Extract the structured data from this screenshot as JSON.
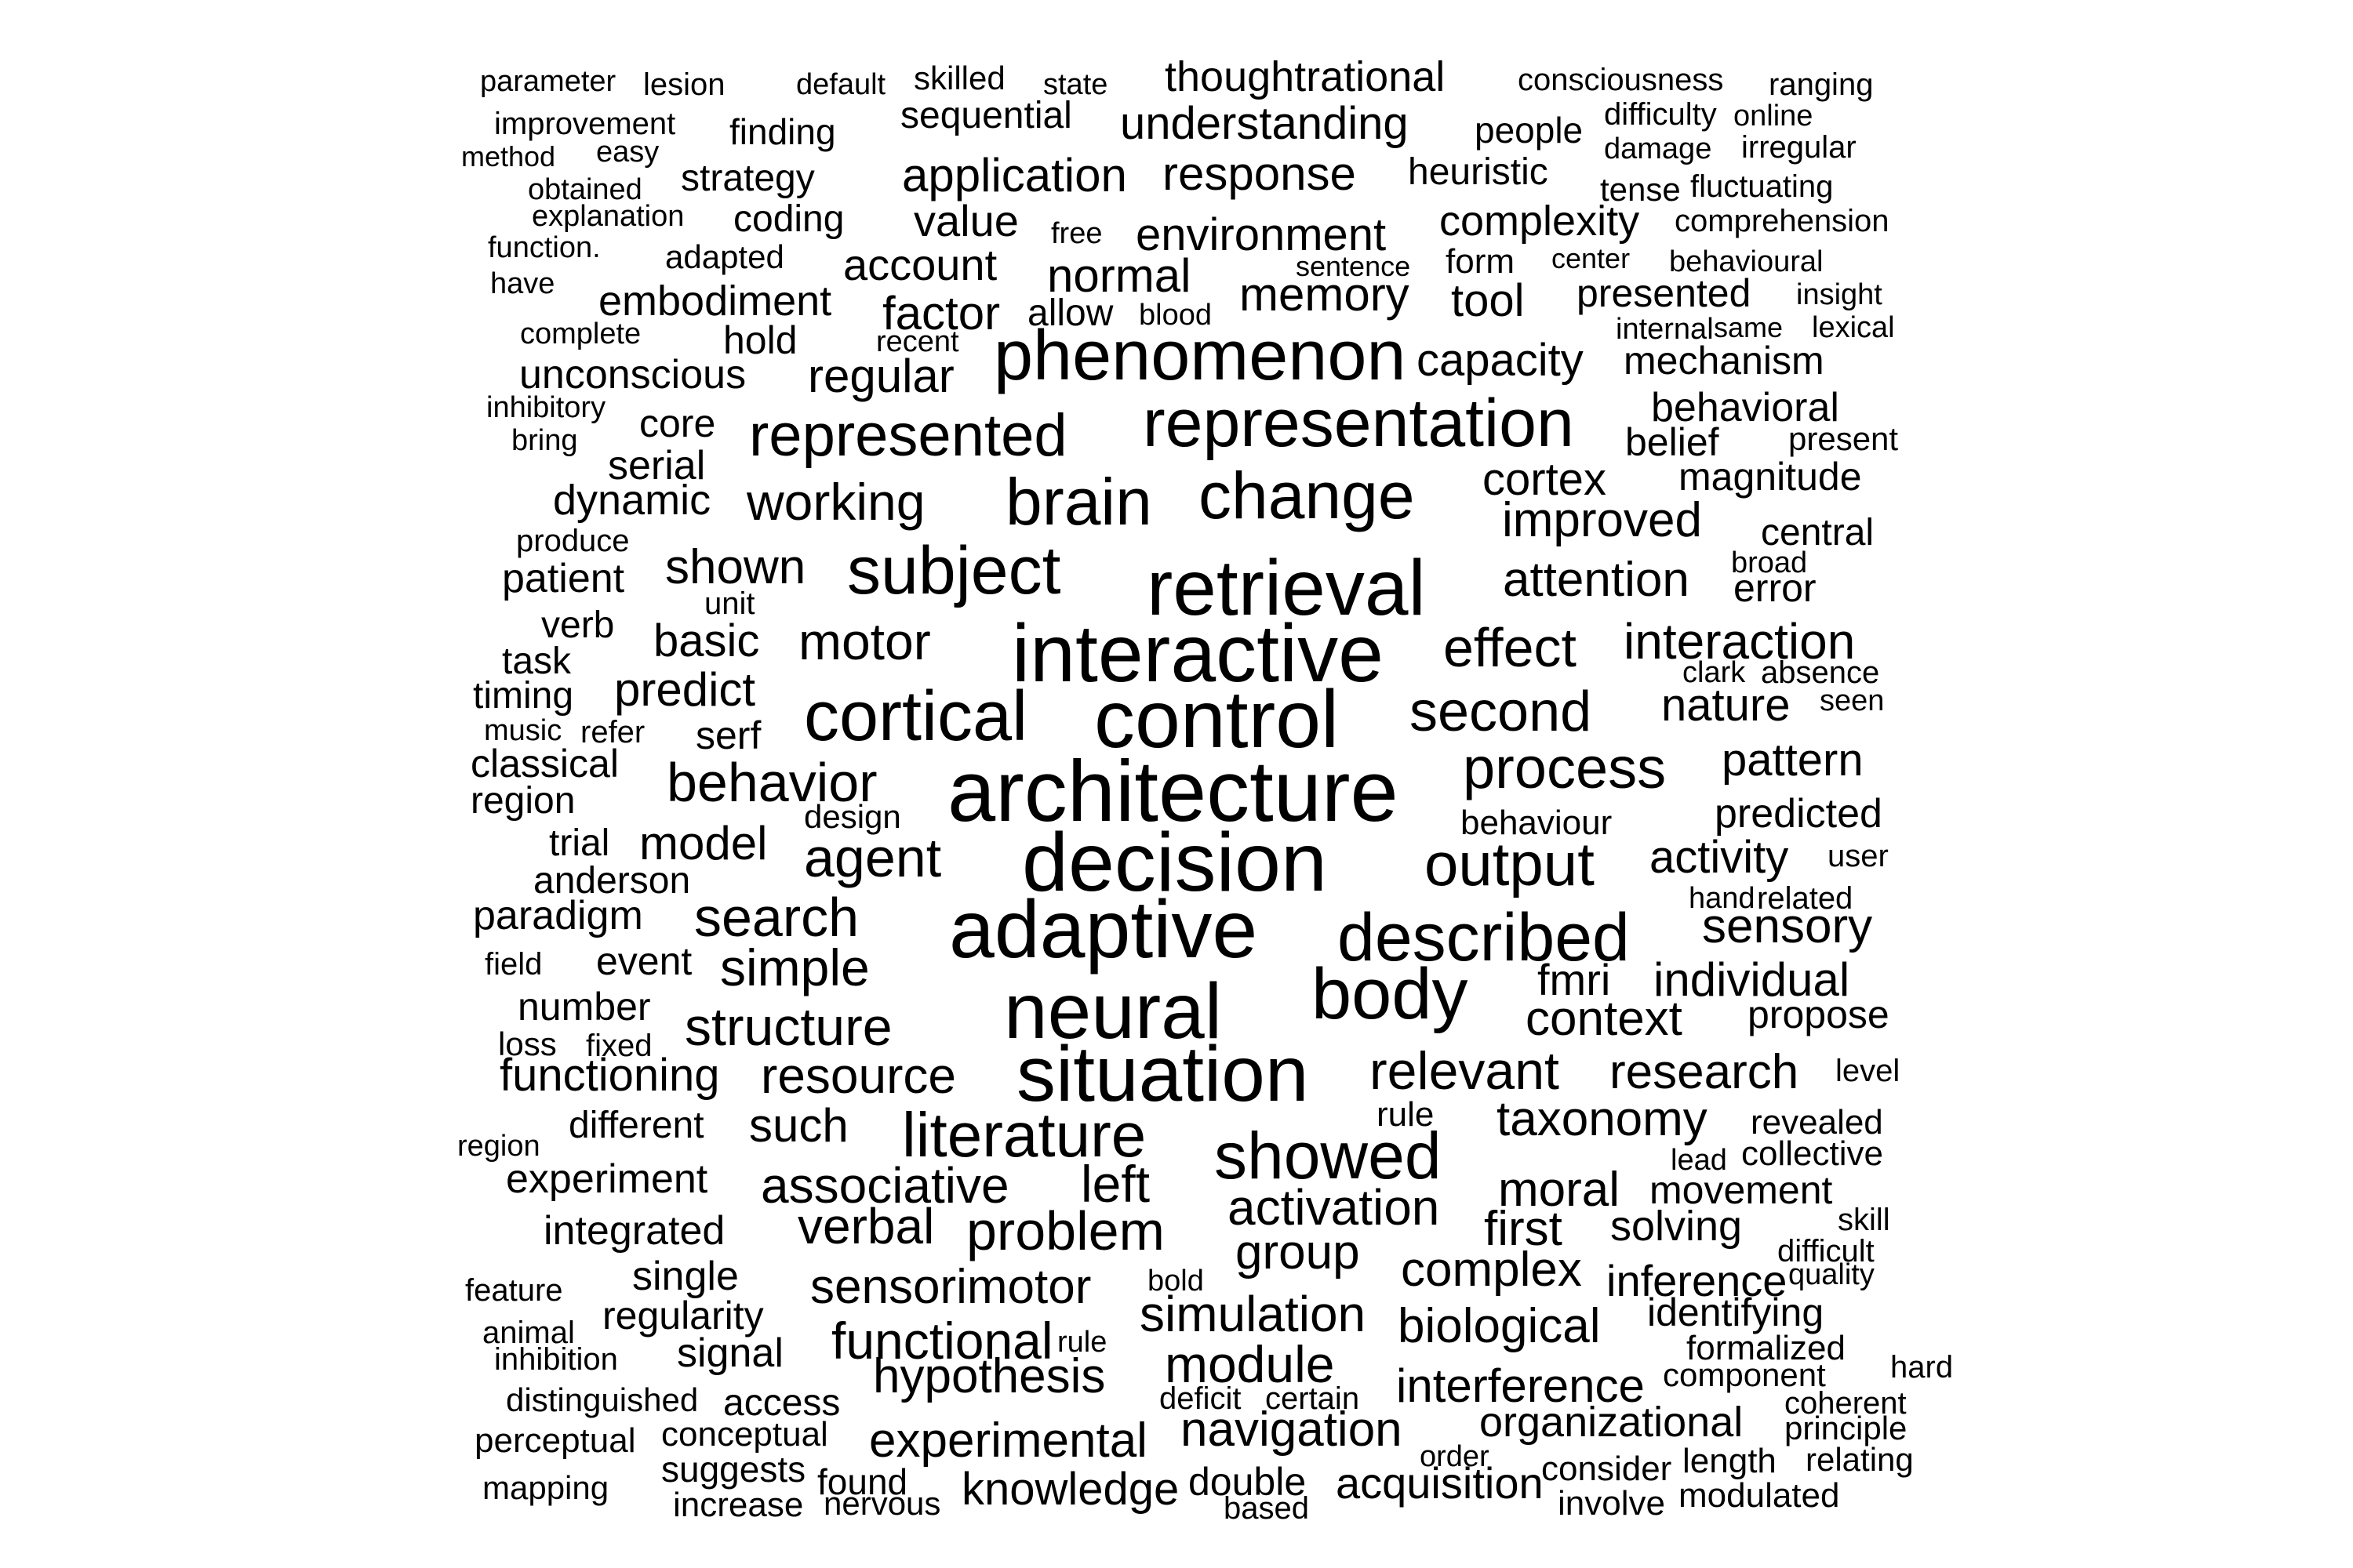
{
  "text_color": "#000000",
  "background_color": "#ffffff",
  "words": [
    "parameter",
    "lesion",
    "default",
    "skilled",
    "state",
    "thoughtrational",
    "consciousness",
    "ranging",
    "improvement",
    "finding",
    "sequential",
    "understanding",
    "people",
    "difficulty",
    "online",
    "method",
    "easy",
    "damage",
    "irregular",
    "strategy",
    "application",
    "response",
    "heuristic",
    "obtained",
    "tense",
    "fluctuating",
    "explanation",
    "coding",
    "value",
    "complexity",
    "comprehension",
    "function.",
    "free",
    "environment",
    "adapted",
    "sentence",
    "form",
    "center",
    "behavioural",
    "have",
    "account",
    "normal",
    "memory",
    "insight",
    "embodiment",
    "factor",
    "allow",
    "blood",
    "tool",
    "presented",
    "complete",
    "hold",
    "recent",
    "internal",
    "same",
    "lexical",
    "unconscious",
    "phenomenon",
    "capacity",
    "mechanism",
    "regular",
    "inhibitory",
    "representation",
    "behavioral",
    "bring",
    "core",
    "represented",
    "belief",
    "present",
    "serial",
    "magnitude",
    "dynamic",
    "working",
    "brain",
    "change",
    "cortex",
    "produce",
    "improved",
    "central",
    "patient",
    "shown",
    "subject",
    "retrieval",
    "attention",
    "broad",
    "unit",
    "error",
    "verb",
    "basic",
    "motor",
    "interactive",
    "effect",
    "interaction",
    "task",
    "clark",
    "absence",
    "timing",
    "predict",
    "nature",
    "seen",
    "music",
    "refer",
    "serf",
    "cortical",
    "control",
    "second",
    "classical",
    "process",
    "pattern",
    "region",
    "behavior",
    "architecture",
    "design",
    "behaviour",
    "predicted",
    "trial",
    "model",
    "agent",
    "decision",
    "output",
    "activity",
    "user",
    "anderson",
    "paradigm",
    "search",
    "hand",
    "related",
    "adaptive",
    "sensory",
    "field",
    "event",
    "simple",
    "described",
    "fmri",
    "individual",
    "number",
    "body",
    "context",
    "propose",
    "loss",
    "fixed",
    "structure",
    "neural",
    "functioning",
    "resource",
    "relevant",
    "research",
    "level",
    "situation",
    "different",
    "such",
    "literature",
    "rule",
    "taxonomy",
    "revealed",
    "region",
    "experiment",
    "lead",
    "collective",
    "showed",
    "associative",
    "left",
    "moral",
    "movement",
    "integrated",
    "activation",
    "solving",
    "skill",
    "first",
    "verbal",
    "problem",
    "difficult",
    "group",
    "single",
    "complex",
    "feature",
    "inference",
    "quality",
    "sensorimotor",
    "bold",
    "regularity",
    "identifying",
    "animal",
    "simulation",
    "biological",
    "signal",
    "functional",
    "rule",
    "inhibition",
    "formalized",
    "hard",
    "hypothesis",
    "module",
    "component",
    "distinguished",
    "access",
    "deficit",
    "certain",
    "interference",
    "coherent",
    "principle",
    "conceptual",
    "perceptual",
    "experimental",
    "navigation",
    "organizational",
    "suggests",
    "order",
    "consider",
    "length",
    "relating",
    "mapping",
    "found",
    "double",
    "knowledge",
    "acquisition",
    "increase",
    "nervous",
    "based",
    "involve",
    "modulated"
  ]
}
